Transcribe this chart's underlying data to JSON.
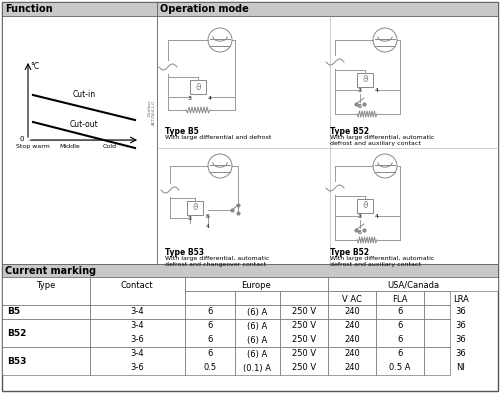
{
  "section1_header": "Function",
  "section2_header": "Operation mode",
  "section3_header": "Current marking",
  "header_bg": "#c8c8c8",
  "circuit_color": "#888888",
  "wire_color": "#999999",
  "func_cut_in": "Cut-in",
  "func_cut_out": "Cut-out",
  "func_x_labels": [
    "Stop warm",
    "Middle",
    "Cold"
  ],
  "type_labels": [
    "Type B5",
    "Type B52",
    "Type B53",
    "Type B52"
  ],
  "type_descs": [
    "With large differential and defrost",
    "With large differential, automatic\ndefrost and auxiliary contact",
    "With large differential, automatic\ndefrost and changeover contact",
    "With large differential, automatic\ndefrost and auxiliary contact"
  ],
  "table_col_headers1": [
    "Type",
    "Contact",
    "Europe",
    "USA/Canada"
  ],
  "table_col_headers2": [
    "V AC",
    "FLA",
    "LRA"
  ],
  "data_rows": [
    {
      "type": "B5",
      "rows": [
        [
          "3-4",
          "6",
          "(6) A",
          "250 V",
          "240",
          "6",
          "36"
        ]
      ]
    },
    {
      "type": "B52",
      "rows": [
        [
          "3-4",
          "6",
          "(6) A",
          "250 V",
          "240",
          "6",
          "36"
        ],
        [
          "3-6",
          "6",
          "(6) A",
          "250 V",
          "240",
          "6",
          "36"
        ]
      ]
    },
    {
      "type": "B53",
      "rows": [
        [
          "3-4",
          "6",
          "(6) A",
          "250 V",
          "240",
          "6",
          "36"
        ],
        [
          "3-6",
          "0.5",
          "(0.1) A",
          "250 V",
          "240",
          "0.5 A",
          "NI"
        ]
      ]
    }
  ]
}
